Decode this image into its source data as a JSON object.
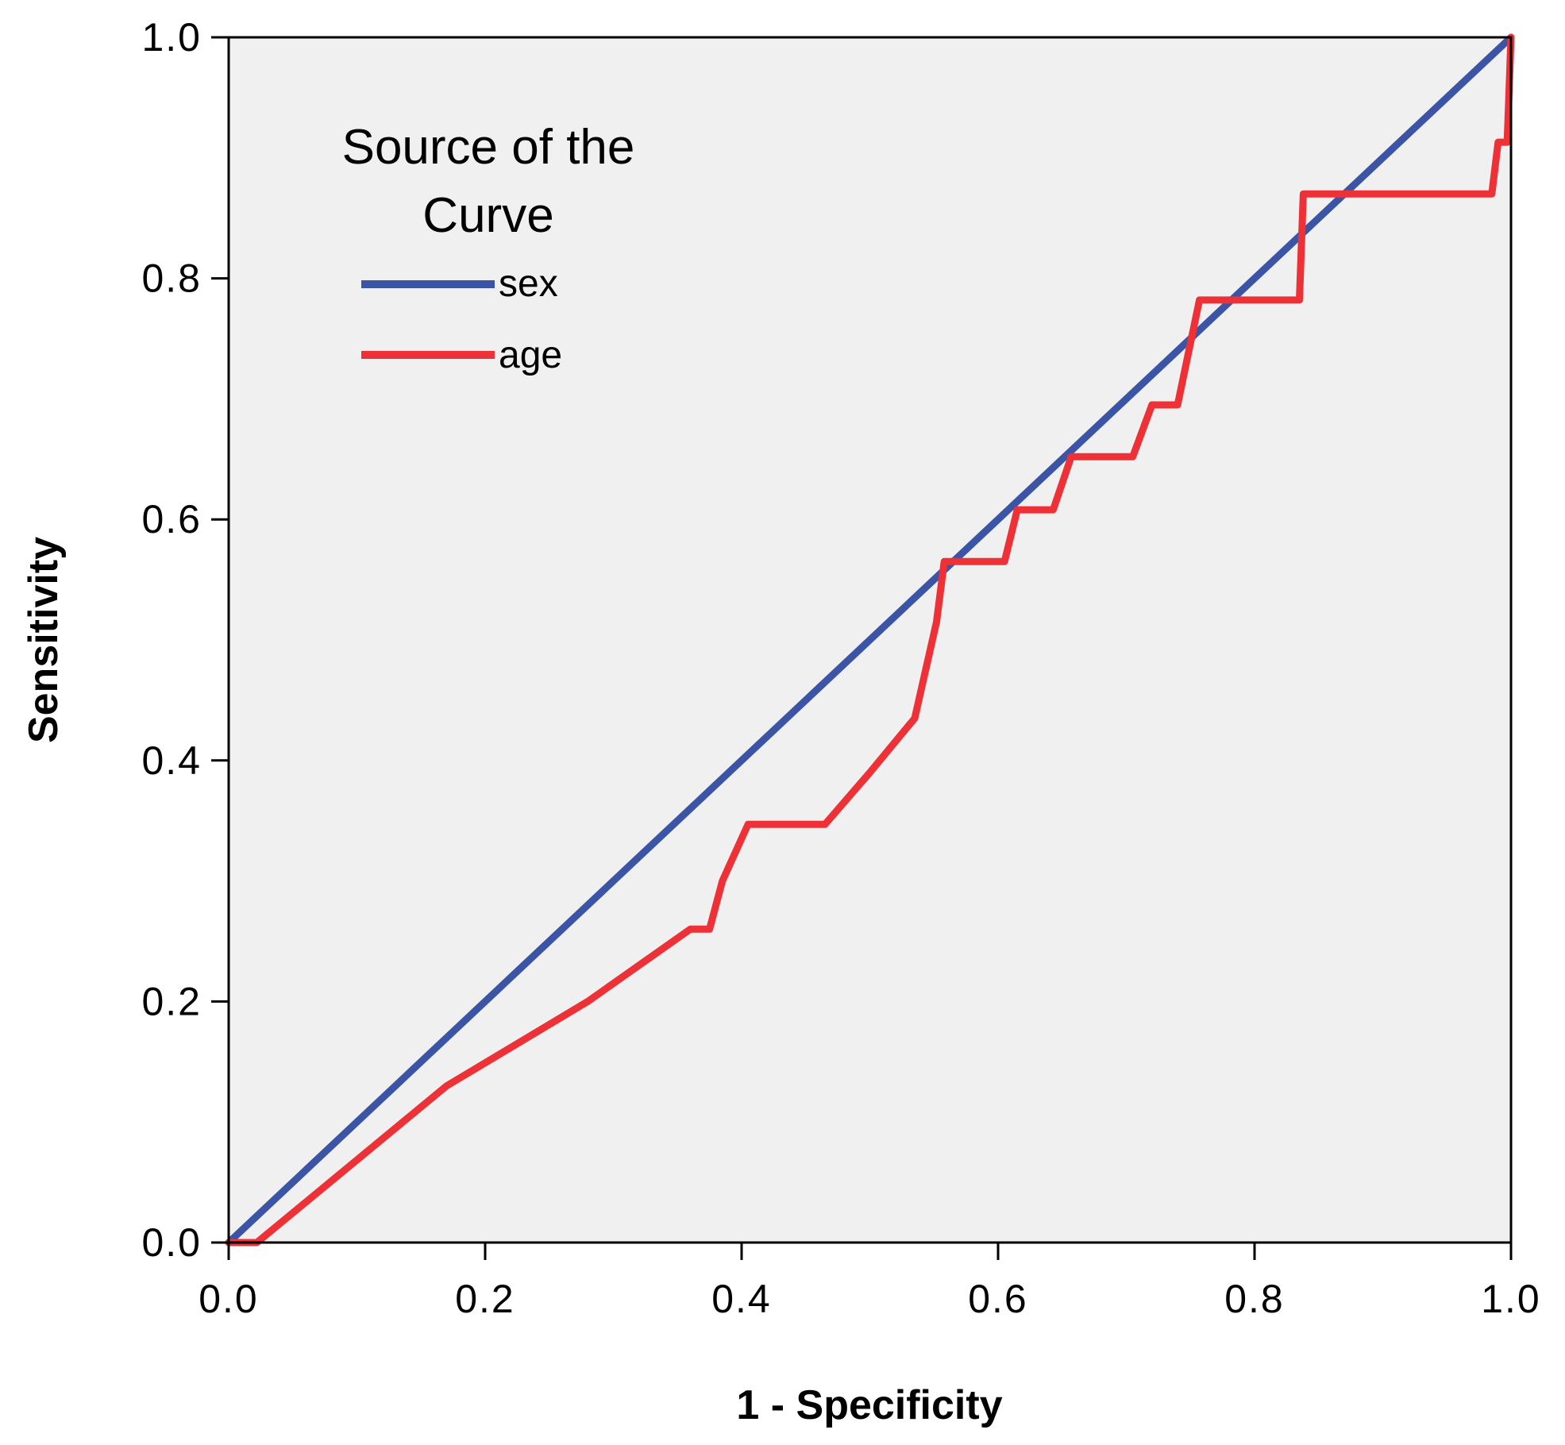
{
  "chart_data": {
    "type": "line",
    "title": "",
    "xlabel": "1 - Specificity",
    "ylabel": "Sensitivity",
    "xlim": [
      0,
      1
    ],
    "ylim": [
      0,
      1
    ],
    "x_ticks": [
      "0.0",
      "0.2",
      "0.4",
      "0.6",
      "0.8",
      "1.0"
    ],
    "y_ticks": [
      "0.0",
      "0.2",
      "0.4",
      "0.6",
      "0.8",
      "1.0"
    ],
    "grid": false,
    "plot_background": "#f0f0f0",
    "legend": {
      "title_lines": [
        "Source of the",
        "Curve"
      ],
      "placement": "top-left"
    },
    "series": [
      {
        "name": "sex",
        "color": "#3b54a6",
        "points": [
          [
            0,
            0
          ],
          [
            1,
            1
          ]
        ]
      },
      {
        "name": "age",
        "color": "#ed3137",
        "points": [
          [
            0,
            0
          ],
          [
            0.022,
            0
          ],
          [
            0.17,
            0.13
          ],
          [
            0.28,
            0.2
          ],
          [
            0.36,
            0.26
          ],
          [
            0.375,
            0.26
          ],
          [
            0.385,
            0.3
          ],
          [
            0.405,
            0.347
          ],
          [
            0.465,
            0.347
          ],
          [
            0.5,
            0.39
          ],
          [
            0.535,
            0.435
          ],
          [
            0.552,
            0.515
          ],
          [
            0.558,
            0.565
          ],
          [
            0.605,
            0.565
          ],
          [
            0.615,
            0.608
          ],
          [
            0.643,
            0.608
          ],
          [
            0.657,
            0.652
          ],
          [
            0.705,
            0.652
          ],
          [
            0.72,
            0.695
          ],
          [
            0.74,
            0.695
          ],
          [
            0.757,
            0.782
          ],
          [
            0.835,
            0.782
          ],
          [
            0.838,
            0.87
          ],
          [
            0.985,
            0.87
          ],
          [
            0.99,
            0.913
          ],
          [
            0.997,
            0.913
          ],
          [
            1,
            1
          ]
        ]
      }
    ]
  }
}
